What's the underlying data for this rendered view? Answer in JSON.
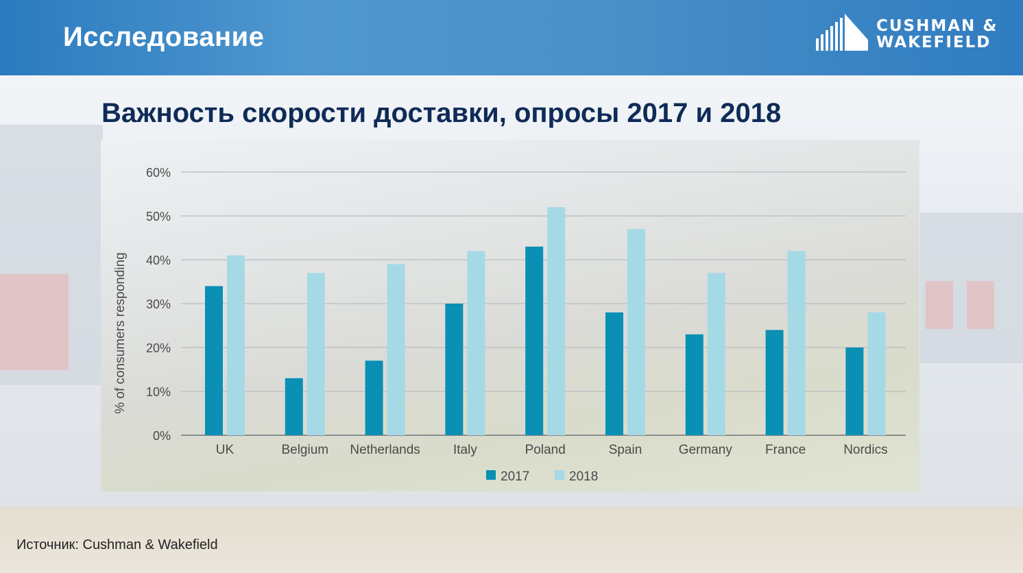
{
  "header": {
    "title": "Исследование"
  },
  "logo": {
    "line1": "CUSHMAN &",
    "line2": "WAKEFIELD"
  },
  "slide": {
    "title": "Важность скорости доставки, опросы 2017 и 2018",
    "source": "Источник: Cushman & Wakefield"
  },
  "colors": {
    "series_2017": "#0a8fb5",
    "series_2018": "#a6d9e6",
    "title": "#0f2b57",
    "header": "#3a87c6"
  },
  "chart_data": {
    "type": "bar",
    "title": "",
    "xlabel": "",
    "ylabel": "% of consumers responding",
    "categories": [
      "UK",
      "Belgium",
      "Netherlands",
      "Italy",
      "Poland",
      "Spain",
      "Germany",
      "France",
      "Nordics"
    ],
    "series": [
      {
        "name": "2017",
        "values": [
          34,
          13,
          17,
          30,
          43,
          28,
          23,
          24,
          20
        ]
      },
      {
        "name": "2018",
        "values": [
          41,
          37,
          39,
          42,
          52,
          47,
          37,
          42,
          28
        ]
      }
    ],
    "yticks": [
      "0%",
      "10%",
      "20%",
      "30%",
      "40%",
      "50%",
      "60%"
    ],
    "ylim": [
      0,
      60
    ],
    "grid": true,
    "legend_position": "bottom"
  }
}
